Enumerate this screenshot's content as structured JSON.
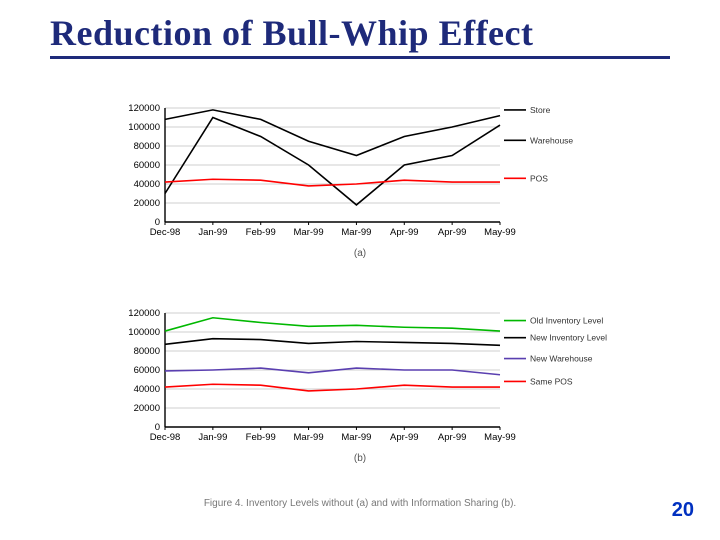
{
  "title": "Reduction of Bull-Whip Effect",
  "page_number": "20",
  "figure_caption": "Figure 4.   Inventory Levels without (a) and with Information Sharing (b).",
  "axis": {
    "ylim": [
      0,
      120000
    ],
    "ytick_step": 20000,
    "yticks": [
      "0",
      "20000",
      "40000",
      "60000",
      "80000",
      "100000",
      "120000"
    ],
    "xlabels": [
      "Dec-98",
      "Jan-99",
      "Feb-99",
      "Mar-99",
      "Mar-99",
      "Apr-99",
      "Apr-99",
      "May-99"
    ],
    "grid_color": "#bfbfbf",
    "axis_color": "#000000",
    "label_fontsize": 9.5,
    "background": "#ffffff"
  },
  "chart_a": {
    "subcaption": "(a)",
    "series": [
      {
        "name": "Store",
        "color": "#000000",
        "width": 1.6,
        "label_y": 118000,
        "values": [
          108000,
          118000,
          108000,
          85000,
          70000,
          90000,
          100000,
          112000
        ]
      },
      {
        "name": "Warehouse",
        "color": "#000000",
        "width": 1.6,
        "label_y": 86000,
        "values": [
          30000,
          110000,
          90000,
          60000,
          18000,
          60000,
          70000,
          102000
        ]
      },
      {
        "name": "POS",
        "color": "#ff0000",
        "width": 1.6,
        "label_y": 46000,
        "values": [
          42000,
          45000,
          44000,
          38000,
          40000,
          44000,
          42000,
          42000
        ]
      }
    ]
  },
  "chart_b": {
    "subcaption": "(b)",
    "series": [
      {
        "name": "Old Inventory Level",
        "color": "#00b800",
        "width": 1.6,
        "label_y": 112000,
        "values": [
          101000,
          115000,
          110000,
          106000,
          107000,
          105000,
          104000,
          101000
        ]
      },
      {
        "name": "New Inventory Level",
        "color": "#000000",
        "width": 1.6,
        "label_y": 94000,
        "values": [
          87000,
          93000,
          92000,
          88000,
          90000,
          89000,
          88000,
          86000
        ]
      },
      {
        "name": "New Warehouse",
        "color": "#5a3fb0",
        "width": 1.6,
        "label_y": 72000,
        "values": [
          59000,
          60000,
          62000,
          57000,
          62000,
          60000,
          60000,
          55000
        ]
      },
      {
        "name": "Same POS",
        "color": "#ff0000",
        "width": 1.6,
        "label_y": 48000,
        "values": [
          42000,
          45000,
          44000,
          38000,
          40000,
          44000,
          42000,
          42000
        ]
      }
    ]
  }
}
